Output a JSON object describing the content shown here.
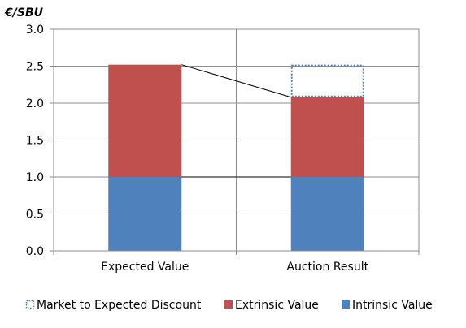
{
  "chart_data": {
    "type": "bar",
    "stacked": true,
    "ylabel": "€/SBU",
    "ylim": [
      0,
      3.0
    ],
    "yticks": [
      "0.0",
      "0.5",
      "1.0",
      "1.5",
      "2.0",
      "2.5",
      "3.0"
    ],
    "ytick_values": [
      0,
      0.5,
      1.0,
      1.5,
      2.0,
      2.5,
      3.0
    ],
    "categories": [
      "Expected Value",
      "Auction Result"
    ],
    "grid": true,
    "legend_position": "bottom",
    "series": [
      {
        "name": "Intrinsic Value",
        "color": "#4f81bd",
        "style": "solid",
        "values": [
          1.0,
          1.0
        ]
      },
      {
        "name": "Extrinsic Value",
        "color": "#c0504d",
        "style": "solid",
        "values": [
          1.52,
          1.08
        ]
      },
      {
        "name": "Market to Expected Discount",
        "color": "#4f81bd",
        "style": "dotted-outline",
        "values": [
          0,
          0.44
        ]
      }
    ],
    "legend_order": [
      "Market to Expected Discount",
      "Extrinsic Value",
      "Intrinsic Value"
    ],
    "connector_lines": [
      {
        "from_category": "Expected Value",
        "to_category": "Auction Result",
        "y_from": 2.52,
        "y_to": 2.08
      },
      {
        "from_category": "Expected Value",
        "to_category": "Auction Result",
        "y_from": 1.0,
        "y_to": 1.0
      }
    ]
  }
}
